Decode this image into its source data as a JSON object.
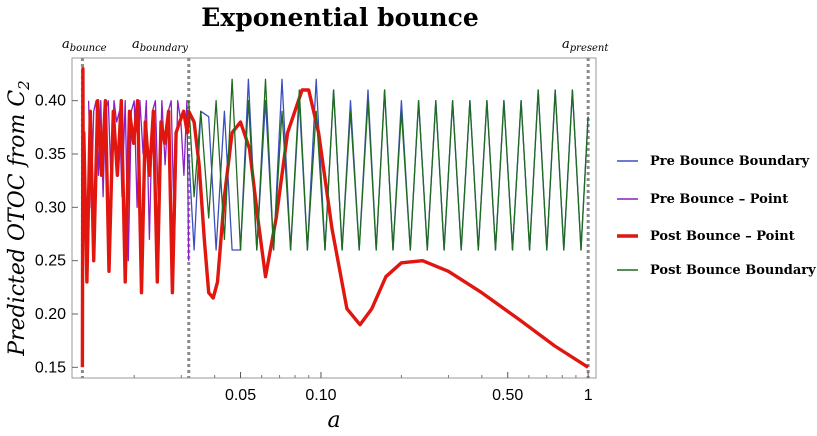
{
  "chart_data": {
    "type": "line",
    "title": "Exponential bounce",
    "xlabel": "a",
    "ylabel": "Predicted OTOC from C",
    "ylabel_sub": "2",
    "x_scale": "log",
    "xlim": [
      0.0117,
      1.07
    ],
    "ylim": [
      0.14,
      0.44
    ],
    "x_ticks": [
      {
        "value": 0.05,
        "label": "0.05"
      },
      {
        "value": 0.1,
        "label": "0.10"
      },
      {
        "value": 0.5,
        "label": "0.50"
      },
      {
        "value": 1,
        "label": "1"
      }
    ],
    "y_ticks": [
      {
        "value": 0.15,
        "label": "0.15"
      },
      {
        "value": 0.2,
        "label": "0.20"
      },
      {
        "value": 0.25,
        "label": "0.25"
      },
      {
        "value": 0.3,
        "label": "0.30"
      },
      {
        "value": 0.35,
        "label": "0.35"
      },
      {
        "value": 0.4,
        "label": "0.40"
      }
    ],
    "vertical_markers": [
      {
        "base": "a",
        "sub": "bounce",
        "x": 0.0128
      },
      {
        "base": "a",
        "sub": "boundary",
        "x": 0.032
      },
      {
        "base": "a",
        "sub": "present",
        "x": 1.0
      }
    ],
    "legend_position": "right",
    "series": [
      {
        "name": "Pre Bounce Boundary",
        "color": "#3c4fbf",
        "x": [
          0.032,
          0.0335,
          0.0355,
          0.038,
          0.0405,
          0.0435,
          0.0465,
          0.05,
          0.0535,
          0.0575,
          0.062,
          0.0665,
          0.0715,
          0.077,
          0.083,
          0.089,
          0.096,
          0.1035,
          0.1115,
          0.12,
          0.129,
          0.139,
          0.15,
          0.161,
          0.173,
          0.186,
          0.2,
          0.216,
          0.232,
          0.25,
          0.269,
          0.289,
          0.311,
          0.335,
          0.361,
          0.388,
          0.418,
          0.45,
          0.484,
          0.521,
          0.561,
          0.604,
          0.65,
          0.7,
          0.753,
          0.811,
          0.873,
          0.94,
          1.0
        ],
        "y": [
          0.35,
          0.26,
          0.39,
          0.385,
          0.26,
          0.39,
          0.26,
          0.26,
          0.42,
          0.26,
          0.4,
          0.26,
          0.42,
          0.26,
          0.4,
          0.26,
          0.42,
          0.26,
          0.41,
          0.26,
          0.4,
          0.26,
          0.41,
          0.26,
          0.41,
          0.26,
          0.4,
          0.26,
          0.4,
          0.26,
          0.4,
          0.26,
          0.4,
          0.26,
          0.4,
          0.26,
          0.4,
          0.26,
          0.4,
          0.26,
          0.4,
          0.26,
          0.41,
          0.26,
          0.41,
          0.26,
          0.41,
          0.26,
          0.385
        ]
      },
      {
        "name": "Pre Bounce – Point",
        "color": "#8a1fc4",
        "x": [
          0.0135,
          0.0138,
          0.0141,
          0.0144,
          0.0147,
          0.015,
          0.0153,
          0.0156,
          0.016,
          0.0164,
          0.0168,
          0.0172,
          0.0176,
          0.018,
          0.0185,
          0.019,
          0.0195,
          0.02,
          0.0205,
          0.021,
          0.0216,
          0.0222,
          0.0228,
          0.0234,
          0.024,
          0.0247,
          0.0254,
          0.0261,
          0.0268,
          0.0275,
          0.0283,
          0.0291,
          0.0299,
          0.0307,
          0.0315,
          0.032
        ],
        "y": [
          0.4,
          0.3,
          0.39,
          0.4,
          0.33,
          0.4,
          0.31,
          0.39,
          0.4,
          0.32,
          0.4,
          0.38,
          0.39,
          0.31,
          0.4,
          0.25,
          0.39,
          0.4,
          0.3,
          0.4,
          0.35,
          0.4,
          0.27,
          0.39,
          0.4,
          0.29,
          0.4,
          0.34,
          0.39,
          0.4,
          0.27,
          0.4,
          0.38,
          0.33,
          0.4,
          0.25
        ]
      },
      {
        "name": "Post Bounce – Point",
        "color": "#e0160f",
        "x": [
          0.0128,
          0.01285,
          0.0129,
          0.01295,
          0.0133,
          0.0137,
          0.0141,
          0.0146,
          0.0151,
          0.0156,
          0.0161,
          0.0167,
          0.0173,
          0.0179,
          0.0185,
          0.0192,
          0.0199,
          0.0206,
          0.0213,
          0.022,
          0.0228,
          0.0236,
          0.0244,
          0.0252,
          0.026,
          0.0269,
          0.0278,
          0.0287,
          0.0296,
          0.0306,
          0.0316,
          0.032,
          0.0335,
          0.035,
          0.0366,
          0.038,
          0.0395,
          0.041,
          0.0435,
          0.0465,
          0.05,
          0.054,
          0.058,
          0.062,
          0.068,
          0.075,
          0.085,
          0.09,
          0.098,
          0.11,
          0.125,
          0.14,
          0.155,
          0.175,
          0.2,
          0.24,
          0.3,
          0.4,
          0.55,
          0.75,
          1.0
        ],
        "y": [
          0.15,
          0.43,
          0.3,
          0.37,
          0.23,
          0.39,
          0.25,
          0.4,
          0.33,
          0.4,
          0.24,
          0.39,
          0.33,
          0.4,
          0.23,
          0.39,
          0.36,
          0.4,
          0.22,
          0.38,
          0.33,
          0.39,
          0.23,
          0.38,
          0.36,
          0.39,
          0.22,
          0.37,
          0.38,
          0.39,
          0.37,
          0.39,
          0.38,
          0.34,
          0.27,
          0.22,
          0.215,
          0.23,
          0.31,
          0.37,
          0.38,
          0.355,
          0.29,
          0.235,
          0.29,
          0.37,
          0.41,
          0.41,
          0.37,
          0.28,
          0.205,
          0.19,
          0.205,
          0.235,
          0.248,
          0.25,
          0.24,
          0.22,
          0.195,
          0.17,
          0.15
        ]
      },
      {
        "name": "Post Bounce Boundary",
        "color": "#1f6b1f",
        "x": [
          0.032,
          0.0335,
          0.0355,
          0.038,
          0.0405,
          0.0435,
          0.0465,
          0.05,
          0.0535,
          0.0575,
          0.062,
          0.0665,
          0.0715,
          0.077,
          0.083,
          0.089,
          0.096,
          0.1035,
          0.1115,
          0.12,
          0.129,
          0.139,
          0.15,
          0.161,
          0.173,
          0.186,
          0.2,
          0.216,
          0.232,
          0.25,
          0.269,
          0.289,
          0.311,
          0.335,
          0.361,
          0.388,
          0.418,
          0.45,
          0.484,
          0.521,
          0.561,
          0.604,
          0.65,
          0.7,
          0.753,
          0.811,
          0.873,
          0.94,
          1.0
        ],
        "y": [
          0.4,
          0.31,
          0.39,
          0.29,
          0.4,
          0.27,
          0.42,
          0.26,
          0.4,
          0.26,
          0.42,
          0.26,
          0.39,
          0.26,
          0.41,
          0.26,
          0.39,
          0.26,
          0.41,
          0.26,
          0.39,
          0.26,
          0.4,
          0.26,
          0.41,
          0.26,
          0.39,
          0.26,
          0.4,
          0.26,
          0.4,
          0.26,
          0.4,
          0.26,
          0.4,
          0.26,
          0.4,
          0.26,
          0.4,
          0.26,
          0.4,
          0.26,
          0.41,
          0.26,
          0.41,
          0.26,
          0.41,
          0.26,
          0.385
        ]
      }
    ]
  }
}
